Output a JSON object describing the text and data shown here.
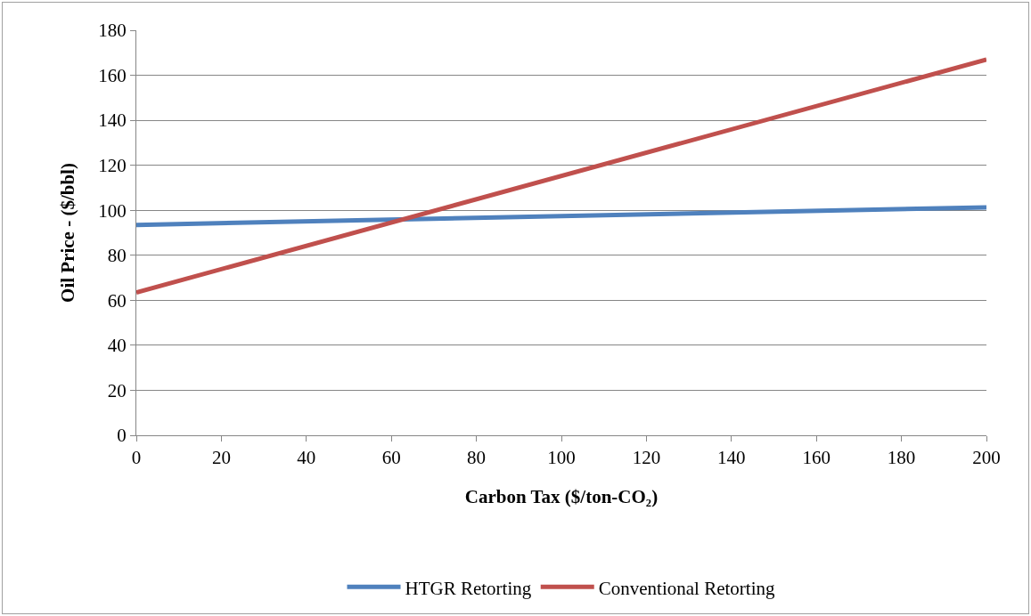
{
  "chart_data": {
    "type": "line",
    "xlabel": "Carbon Tax ($/ton-CO₂)",
    "ylabel": "Oil Price - ($/bbl)",
    "x": [
      0,
      200
    ],
    "series": [
      {
        "name": "HTGR Retorting",
        "color": "#4f81bd",
        "values": [
          93.5,
          101.3
        ]
      },
      {
        "name": "Conventional Retorting",
        "color": "#c0504d",
        "values": [
          63.5,
          167
        ]
      }
    ],
    "xlim": [
      0,
      200
    ],
    "xticks": [
      0,
      20,
      40,
      60,
      80,
      100,
      120,
      140,
      160,
      180,
      200
    ],
    "ylim": [
      0,
      180
    ],
    "yticks": [
      0,
      20,
      40,
      60,
      80,
      100,
      120,
      140,
      160,
      180
    ],
    "grid": "y",
    "legend": "bottom",
    "marker": "none",
    "line_style": "solid"
  }
}
